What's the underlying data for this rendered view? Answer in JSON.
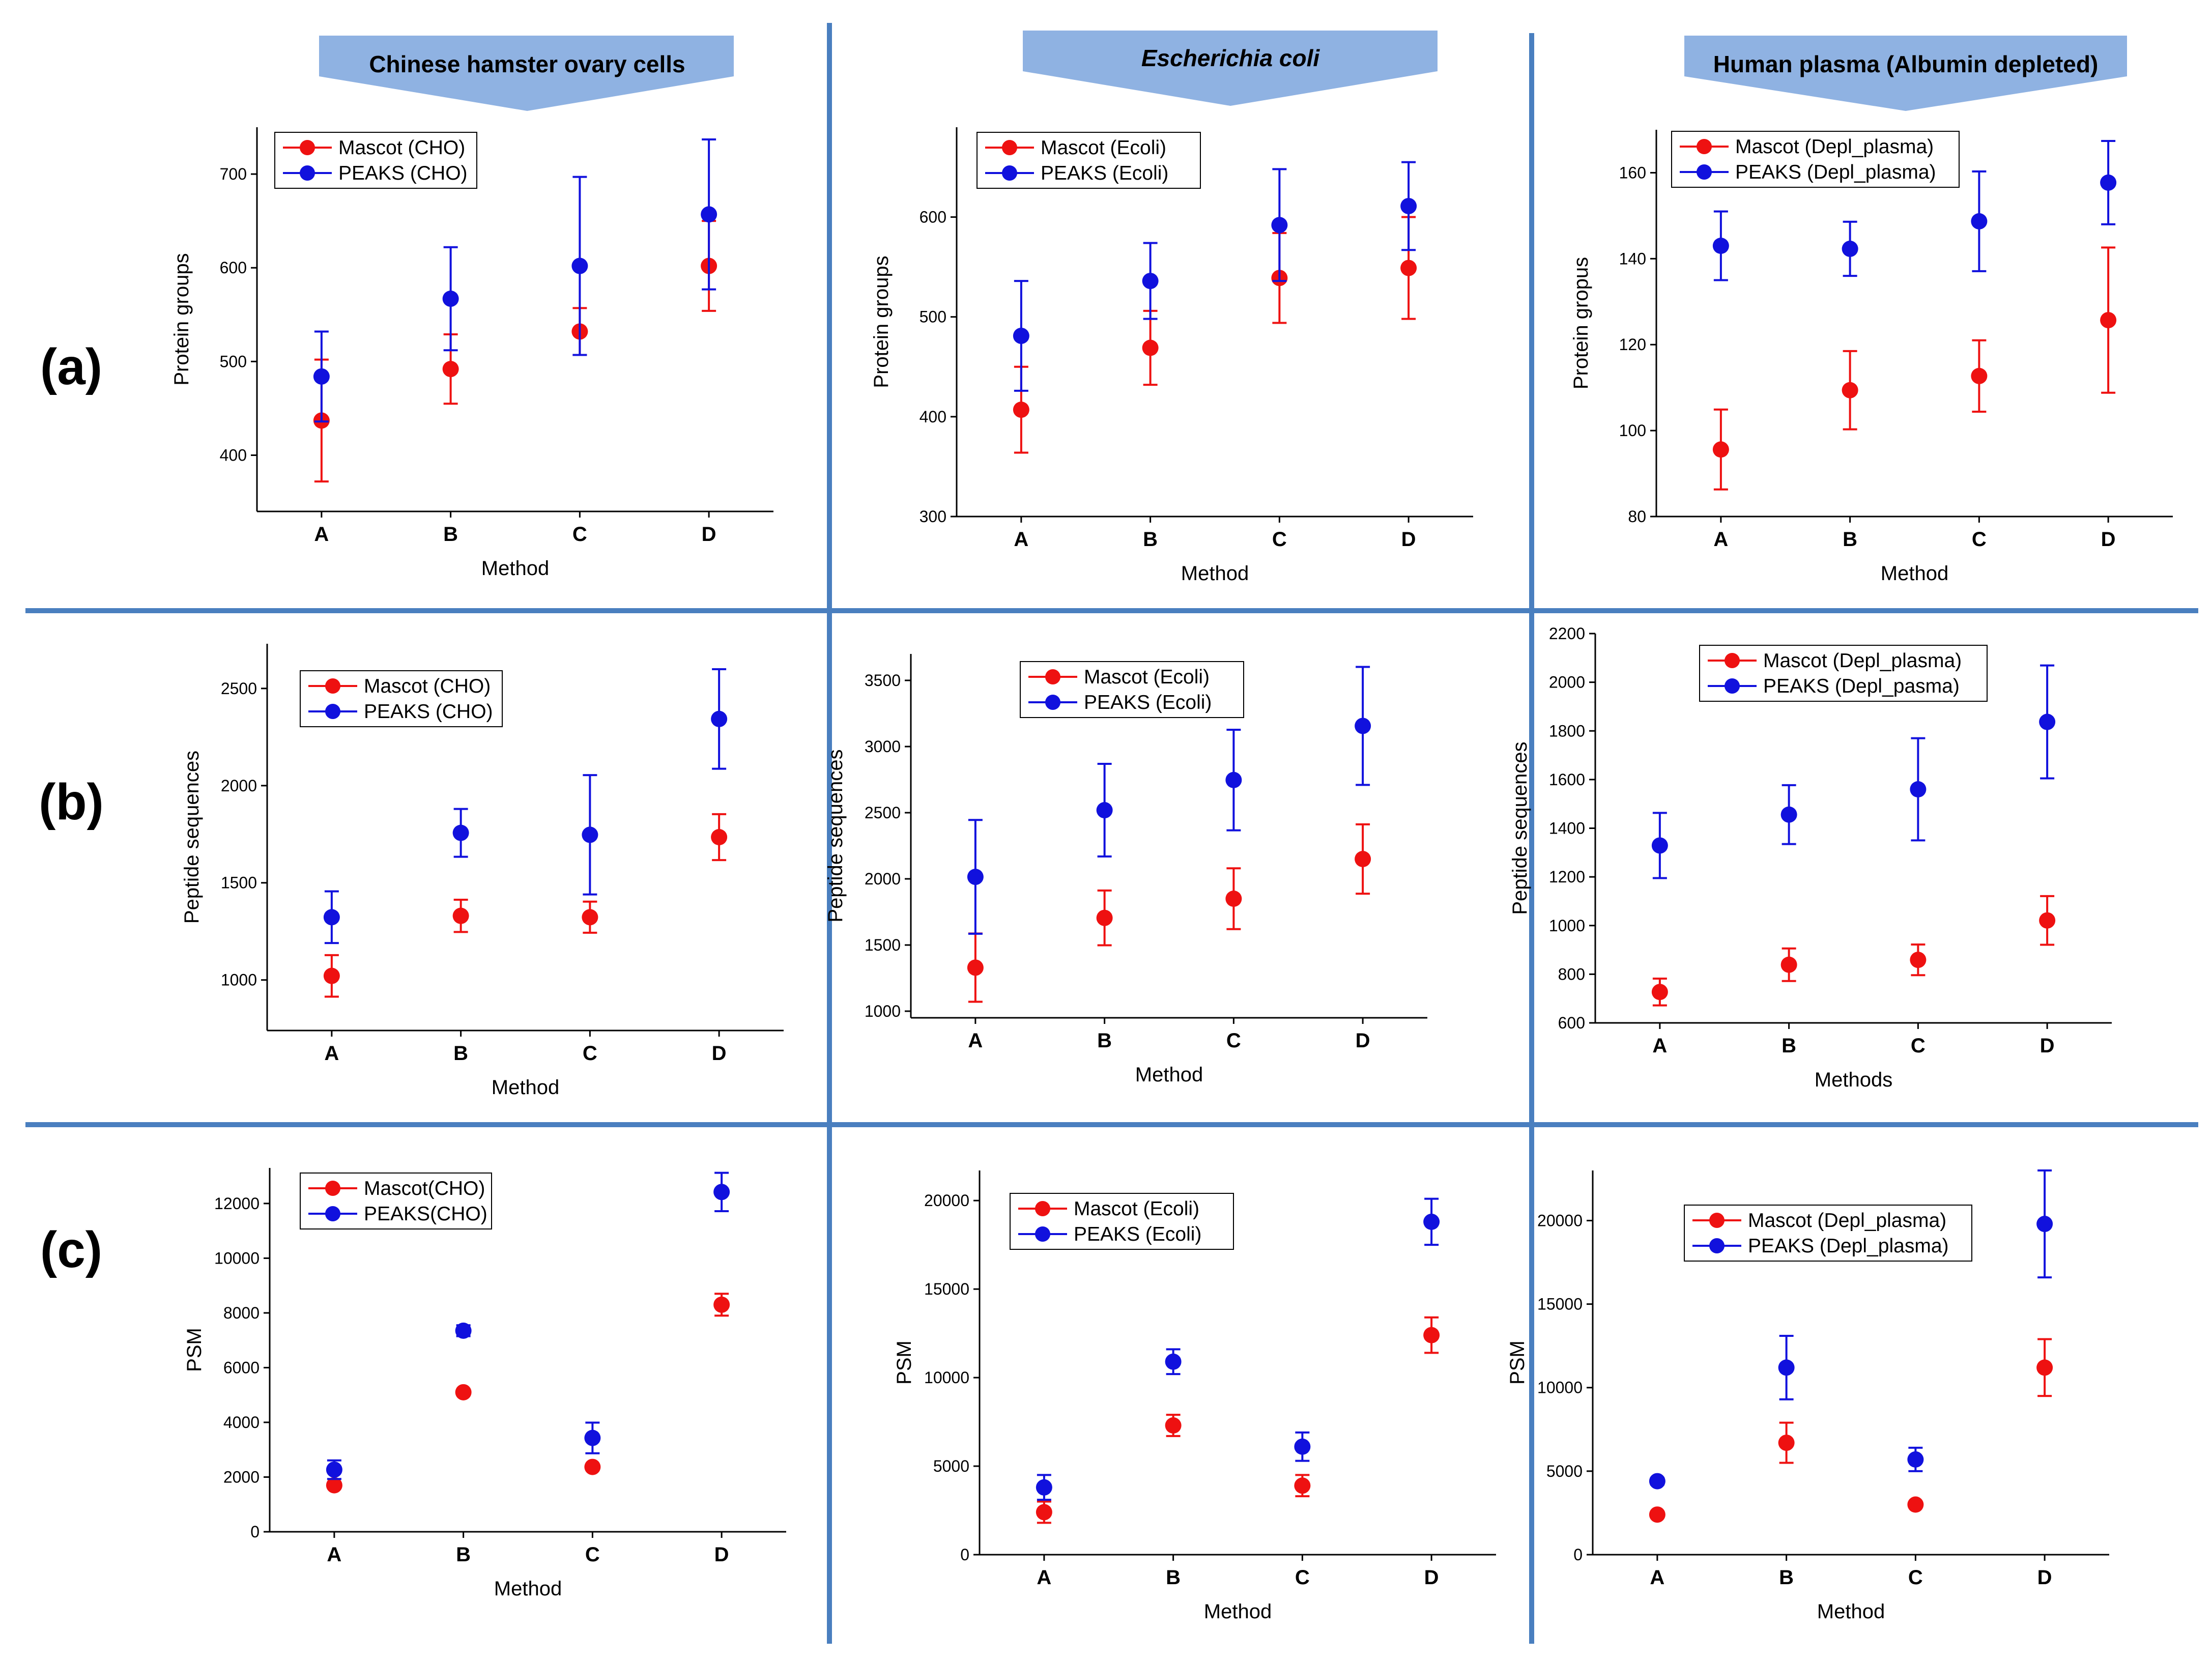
{
  "columns": [
    {
      "label": "Chinese hamster ovary cells",
      "italic": false
    },
    {
      "label": "Escherichia coli",
      "italic": true
    },
    {
      "label": "Human plasma (Albumin depleted)",
      "italic": false
    }
  ],
  "rows": [
    "(a)",
    "(b)",
    "(c)"
  ],
  "colors": {
    "mascot": "#ee1111",
    "peaks": "#1111dd",
    "divider": "#4a7fbf",
    "banner": "#8fb2e2"
  },
  "chart_data": [
    {
      "id": "a-cho",
      "type": "scatter",
      "xlabel": "Method",
      "ylabel": "Protein groups",
      "categories": [
        "A",
        "B",
        "C",
        "D"
      ],
      "ylim": [
        340,
        750
      ],
      "yticks": [
        400,
        500,
        600,
        700
      ],
      "series": [
        {
          "name": "Mascot (CHO)",
          "color": "#ee1111",
          "values": [
            437,
            492,
            532,
            602
          ],
          "err": [
            65,
            37,
            25,
            48
          ]
        },
        {
          "name": "PEAKS (CHO)",
          "color": "#1111dd",
          "values": [
            484,
            567,
            602,
            657
          ],
          "err": [
            48,
            55,
            95,
            80
          ]
        }
      ]
    },
    {
      "id": "a-ecoli",
      "type": "scatter",
      "xlabel": "Method",
      "ylabel": "Protein groups",
      "categories": [
        "A",
        "B",
        "C",
        "D"
      ],
      "ylim": [
        300,
        690
      ],
      "yticks": [
        300,
        400,
        500,
        600
      ],
      "series": [
        {
          "name": "Mascot (Ecoli)",
          "color": "#ee1111",
          "values": [
            407,
            469,
            539,
            549
          ],
          "err": [
            43,
            37,
            45,
            51
          ]
        },
        {
          "name": "PEAKS (Ecoli)",
          "color": "#1111dd",
          "values": [
            481,
            536,
            592,
            611
          ],
          "err": [
            55,
            38,
            56,
            44
          ]
        }
      ]
    },
    {
      "id": "a-plasma",
      "type": "scatter",
      "xlabel": "Method",
      "ylabel": "Protein gropus",
      "categories": [
        "A",
        "B",
        "C",
        "D"
      ],
      "ylim": [
        80,
        170
      ],
      "yticks": [
        80,
        100,
        120,
        140,
        160
      ],
      "series": [
        {
          "name": "Mascot (Depl_plasma)",
          "color": "#ee1111",
          "values": [
            95.6,
            109.4,
            112.7,
            125.7
          ],
          "err": [
            9.3,
            9.1,
            8.3,
            16.9
          ]
        },
        {
          "name": "PEAKS (Depl_plasma)",
          "color": "#1111dd",
          "values": [
            143.0,
            142.3,
            148.7,
            157.7
          ],
          "err": [
            8.0,
            6.3,
            11.6,
            9.7
          ]
        }
      ]
    },
    {
      "id": "b-cho",
      "type": "scatter",
      "xlabel": "Method",
      "ylabel": "Peptide sequences",
      "categories": [
        "A",
        "B",
        "C",
        "D"
      ],
      "ylim": [
        740,
        2730
      ],
      "yticks": [
        1000,
        1500,
        2000,
        2500
      ],
      "series": [
        {
          "name": "Mascot (CHO)",
          "color": "#ee1111",
          "values": [
            1021,
            1330,
            1323,
            1735
          ],
          "err": [
            107,
            83,
            80,
            118
          ]
        },
        {
          "name": "PEAKS (CHO)",
          "color": "#1111dd",
          "values": [
            1323,
            1757,
            1747,
            2343
          ],
          "err": [
            133,
            123,
            307,
            256
          ]
        }
      ]
    },
    {
      "id": "b-ecoli",
      "type": "scatter",
      "xlabel": "Method",
      "ylabel": "Peptide sequences",
      "categories": [
        "A",
        "B",
        "C",
        "D"
      ],
      "ylim": [
        950,
        3700
      ],
      "yticks": [
        1000,
        1500,
        2000,
        2500,
        3000,
        3500
      ],
      "series": [
        {
          "name": "Mascot (Ecoli)",
          "color": "#ee1111",
          "values": [
            1329,
            1705,
            1850,
            2150
          ],
          "err": [
            258,
            207,
            230,
            262
          ]
        },
        {
          "name": "PEAKS (Ecoli)",
          "color": "#1111dd",
          "values": [
            2015,
            2519,
            2747,
            3156
          ],
          "err": [
            430,
            350,
            380,
            446
          ]
        }
      ]
    },
    {
      "id": "b-plasma",
      "type": "scatter",
      "xlabel": "Methods",
      "ylabel": "Peptide sequences",
      "categories": [
        "A",
        "B",
        "C",
        "D"
      ],
      "ylim": [
        600,
        2200
      ],
      "yticks": [
        600,
        800,
        1000,
        1200,
        1400,
        1600,
        1800,
        2000,
        2200
      ],
      "series": [
        {
          "name": "Mascot (Depl_plasma)",
          "color": "#ee1111",
          "values": [
            727,
            839,
            859,
            1021
          ],
          "err": [
            55,
            67,
            63,
            100
          ]
        },
        {
          "name": "PEAKS (Depl_pasma)",
          "color": "#1111dd",
          "values": [
            1329,
            1456,
            1560,
            1837
          ],
          "err": [
            134,
            121,
            210,
            232
          ]
        }
      ]
    },
    {
      "id": "c-cho",
      "type": "scatter",
      "xlabel": "Method",
      "ylabel": "PSM",
      "categories": [
        "A",
        "B",
        "C",
        "D"
      ],
      "ylim": [
        0,
        13300
      ],
      "yticks": [
        0,
        2000,
        4000,
        6000,
        8000,
        10000,
        12000
      ],
      "series": [
        {
          "name": "Mascot(CHO)",
          "color": "#ee1111",
          "values": [
            1700,
            5100,
            2370,
            8300
          ],
          "err": [
            100,
            100,
            100,
            400
          ]
        },
        {
          "name": "PEAKS(CHO)",
          "color": "#1111dd",
          "values": [
            2270,
            7350,
            3430,
            12420
          ],
          "err": [
            340,
            200,
            560,
            700
          ]
        }
      ]
    },
    {
      "id": "c-ecoli",
      "type": "scatter",
      "xlabel": "Method",
      "ylabel": "PSM",
      "categories": [
        "A",
        "B",
        "C",
        "D"
      ],
      "ylim": [
        0,
        21700
      ],
      "yticks": [
        0,
        5000,
        10000,
        15000,
        20000
      ],
      "series": [
        {
          "name": "Mascot (Ecoli)",
          "color": "#ee1111",
          "values": [
            2400,
            7300,
            3900,
            12400
          ],
          "err": [
            600,
            600,
            600,
            1000
          ]
        },
        {
          "name": "PEAKS (Ecoli)",
          "color": "#1111dd",
          "values": [
            3800,
            10900,
            6100,
            18800
          ],
          "err": [
            700,
            700,
            800,
            1300
          ]
        }
      ]
    },
    {
      "id": "c-plasma",
      "type": "scatter",
      "xlabel": "Method",
      "ylabel": "PSM",
      "categories": [
        "A",
        "B",
        "C",
        "D"
      ],
      "ylim": [
        0,
        23000
      ],
      "yticks": [
        0,
        5000,
        10000,
        15000,
        20000
      ],
      "series": [
        {
          "name": "Mascot (Depl_plasma)",
          "color": "#ee1111",
          "values": [
            2400,
            6700,
            3000,
            11200
          ],
          "err": [
            100,
            1200,
            100,
            1700
          ]
        },
        {
          "name": "PEAKS (Depl_plasma)",
          "color": "#1111dd",
          "values": [
            4400,
            11200,
            5700,
            19800
          ],
          "err": [
            200,
            1900,
            700,
            3200
          ]
        }
      ]
    }
  ]
}
